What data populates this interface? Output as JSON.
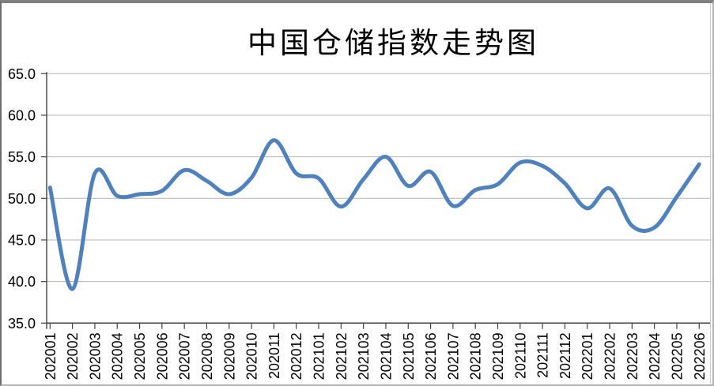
{
  "chart_data": {
    "type": "line",
    "title": "中国仓储指数走势图",
    "categories": [
      "202001",
      "202002",
      "202003",
      "202004",
      "202005",
      "202006",
      "202007",
      "202008",
      "202009",
      "202010",
      "202011",
      "202012",
      "202101",
      "202102",
      "202103",
      "202104",
      "202105",
      "202106",
      "202107",
      "202108",
      "202109",
      "202110",
      "202111",
      "202112",
      "202201",
      "202202",
      "202203",
      "202204",
      "202205",
      "202206"
    ],
    "values": [
      51.3,
      39.1,
      53.0,
      50.3,
      50.5,
      50.9,
      53.4,
      52.1,
      50.5,
      52.5,
      57.0,
      53.0,
      52.4,
      49.0,
      52.3,
      55.0,
      51.5,
      53.2,
      49.1,
      51.0,
      51.7,
      54.3,
      53.9,
      51.8,
      48.8,
      51.2,
      46.7,
      46.5,
      50.2,
      54.1
    ],
    "ylim": [
      35,
      65
    ],
    "ytick_step": 5,
    "ytick_labels": [
      "65.0",
      "60.0",
      "55.0",
      "50.0",
      "45.0",
      "40.0",
      "35.0"
    ],
    "grid": "horizontal",
    "legend_position": "none",
    "smooth": true,
    "line_color": "#4F81BD",
    "gridline_color": "#B3B3B3",
    "axis_color": "#404040",
    "tick_label_color": "#000000"
  }
}
